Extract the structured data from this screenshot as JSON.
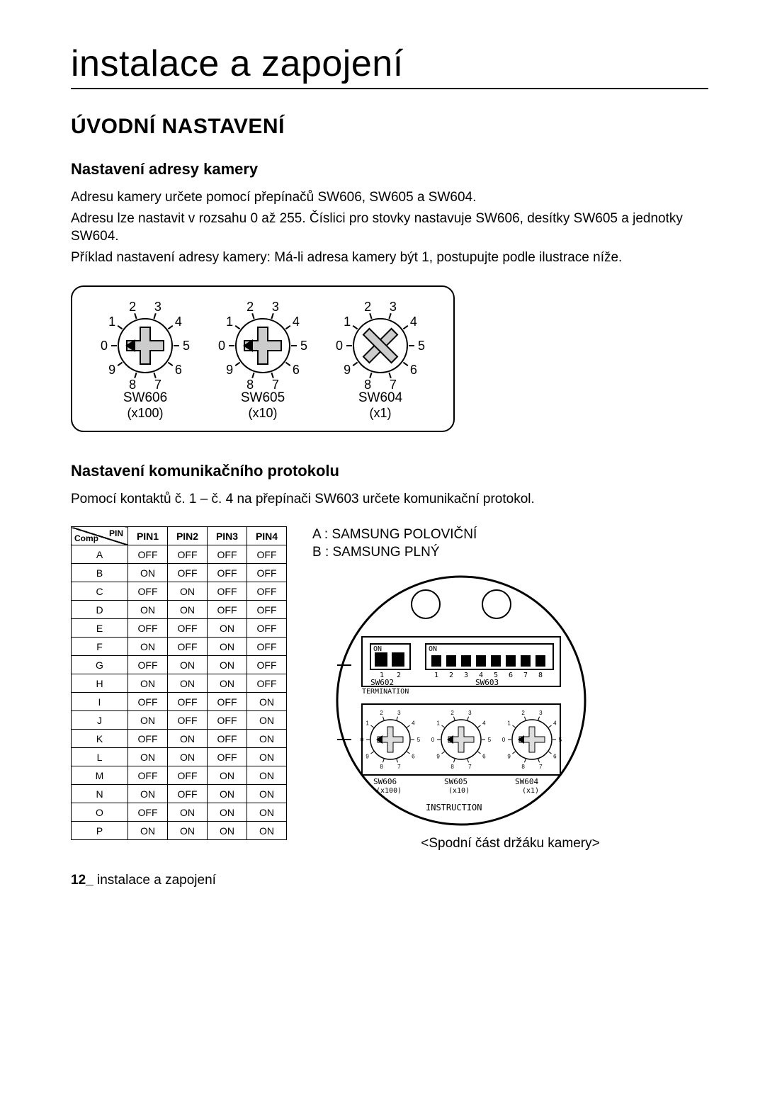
{
  "page": {
    "title": "instalace a zapojení",
    "section": "ÚVODNÍ NASTAVENÍ",
    "footer_page": "12_",
    "footer_text": "instalace a zapojení"
  },
  "address": {
    "heading": "Nastavení adresy kamery",
    "p1": "Adresu kamery určete pomocí přepínačů SW606, SW605 a SW604.",
    "p2": "Adresu lze nastavit v rozsahu 0 až 255. Číslici pro stovky nastavuje SW606, desítky SW605 a jednotky SW604.",
    "p3": "Příklad nastavení adresy kamery: Má-li adresa kamery být 1, postupujte podle ilustrace níže."
  },
  "dials": [
    {
      "name": "SW606",
      "mult": "(x100)",
      "type": "arrow"
    },
    {
      "name": "SW605",
      "mult": "(x10)",
      "type": "arrow"
    },
    {
      "name": "SW604",
      "mult": "(x1)",
      "type": "cross"
    }
  ],
  "dial_numbers": [
    "0",
    "1",
    "2",
    "3",
    "4",
    "5",
    "6",
    "7",
    "8",
    "9"
  ],
  "protocol": {
    "heading": "Nastavení komunikačního protokolu",
    "intro": "Pomocí kontaktů č. 1 – č. 4 na přepínači SW603 určete komunikační protokol.",
    "header_top": "PIN",
    "header_bot": "Comp",
    "cols": [
      "PIN1",
      "PIN2",
      "PIN3",
      "PIN4"
    ],
    "rows": [
      {
        "k": "A",
        "v": [
          "OFF",
          "OFF",
          "OFF",
          "OFF"
        ]
      },
      {
        "k": "B",
        "v": [
          "ON",
          "OFF",
          "OFF",
          "OFF"
        ]
      },
      {
        "k": "C",
        "v": [
          "OFF",
          "ON",
          "OFF",
          "OFF"
        ]
      },
      {
        "k": "D",
        "v": [
          "ON",
          "ON",
          "OFF",
          "OFF"
        ]
      },
      {
        "k": "E",
        "v": [
          "OFF",
          "OFF",
          "ON",
          "OFF"
        ]
      },
      {
        "k": "F",
        "v": [
          "ON",
          "OFF",
          "ON",
          "OFF"
        ]
      },
      {
        "k": "G",
        "v": [
          "OFF",
          "ON",
          "ON",
          "OFF"
        ]
      },
      {
        "k": "H",
        "v": [
          "ON",
          "ON",
          "ON",
          "OFF"
        ]
      },
      {
        "k": "I",
        "v": [
          "OFF",
          "OFF",
          "OFF",
          "ON"
        ]
      },
      {
        "k": "J",
        "v": [
          "ON",
          "OFF",
          "OFF",
          "ON"
        ]
      },
      {
        "k": "K",
        "v": [
          "OFF",
          "ON",
          "OFF",
          "ON"
        ]
      },
      {
        "k": "L",
        "v": [
          "ON",
          "ON",
          "OFF",
          "ON"
        ]
      },
      {
        "k": "M",
        "v": [
          "OFF",
          "OFF",
          "ON",
          "ON"
        ]
      },
      {
        "k": "N",
        "v": [
          "ON",
          "OFF",
          "ON",
          "ON"
        ]
      },
      {
        "k": "O",
        "v": [
          "OFF",
          "ON",
          "ON",
          "ON"
        ]
      },
      {
        "k": "P",
        "v": [
          "ON",
          "ON",
          "ON",
          "ON"
        ]
      }
    ]
  },
  "legend": {
    "a": "A : SAMSUNG POLOVIČNÍ",
    "b": "B : SAMSUNG PLNÝ"
  },
  "bracket": {
    "sw602_on": "ON",
    "sw603_on": "ON",
    "sw602": "SW602",
    "sw602_sub": "TERMINATION",
    "sw603": "SW603",
    "sw606": "SW606",
    "sw606_m": "(x100)",
    "sw605": "SW605",
    "sw605_m": "(x10)",
    "sw604": "SW604",
    "sw604_m": "(x1)",
    "instruction": "INSTRUCTION",
    "caption": "<Spodní část držáku kamery>"
  }
}
